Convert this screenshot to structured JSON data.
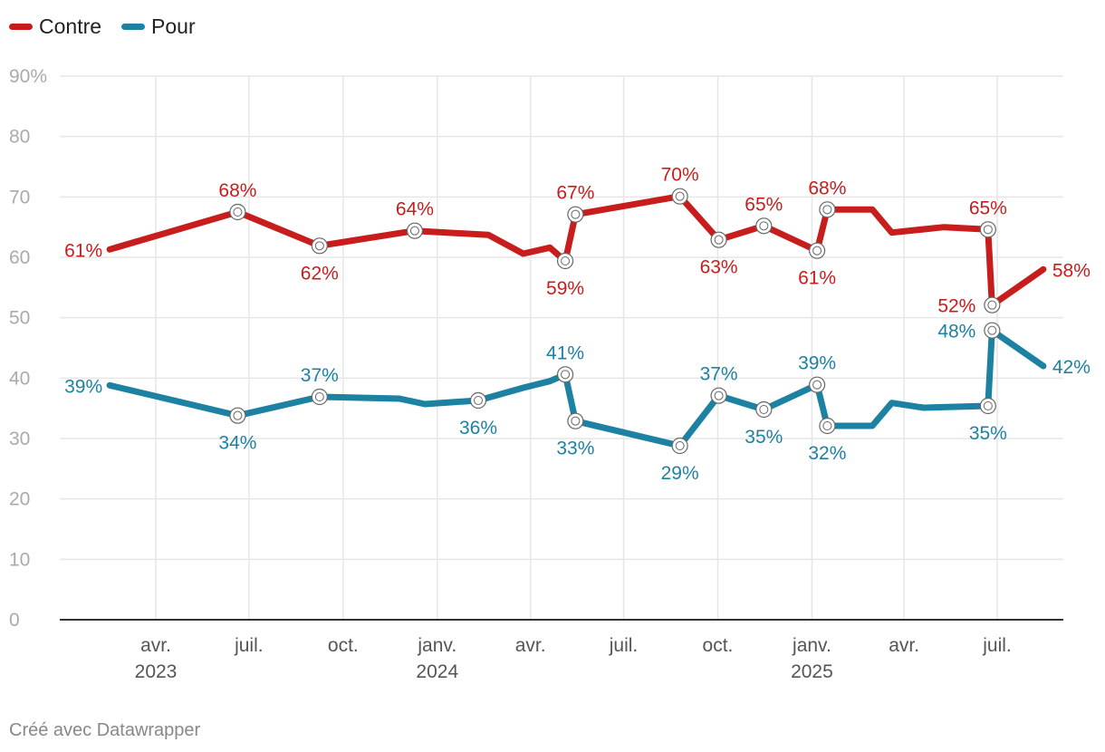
{
  "chart_data": {
    "type": "line",
    "y_axis": {
      "min": 0,
      "max": 90,
      "ticks": [
        0,
        10,
        20,
        30,
        40,
        50,
        60,
        70,
        80,
        90
      ],
      "top_tick_label": "90%"
    },
    "x_axis": {
      "ticks": [
        {
          "date": "2023-04-01",
          "month": "avr.",
          "year": "2023"
        },
        {
          "date": "2023-07-01",
          "month": "juil.",
          "year": ""
        },
        {
          "date": "2023-10-01",
          "month": "oct.",
          "year": ""
        },
        {
          "date": "2024-01-01",
          "month": "janv.",
          "year": "2024"
        },
        {
          "date": "2024-04-01",
          "month": "avr.",
          "year": ""
        },
        {
          "date": "2024-07-01",
          "month": "juil.",
          "year": ""
        },
        {
          "date": "2024-10-01",
          "month": "oct.",
          "year": ""
        },
        {
          "date": "2025-01-01",
          "month": "janv.",
          "year": "2025"
        },
        {
          "date": "2025-04-01",
          "month": "avr.",
          "year": ""
        },
        {
          "date": "2025-07-01",
          "month": "juil.",
          "year": ""
        }
      ]
    },
    "series": [
      {
        "name": "Contre",
        "color": "#c71e1d",
        "points": [
          {
            "date": "2023-02-15",
            "value": 61.3,
            "label": "61%",
            "label_pos": "left"
          },
          {
            "date": "2023-06-20",
            "value": 67.5,
            "label": "68%",
            "label_pos": "above",
            "marker": true
          },
          {
            "date": "2023-09-08",
            "value": 61.9,
            "label": "62%",
            "label_pos": "below",
            "marker": true
          },
          {
            "date": "2023-12-10",
            "value": 64.4,
            "label": "64%",
            "label_pos": "above",
            "marker": true
          },
          {
            "date": "2024-02-20",
            "value": 63.7
          },
          {
            "date": "2024-03-25",
            "value": 60.6
          },
          {
            "date": "2024-04-20",
            "value": 61.6
          },
          {
            "date": "2024-05-05",
            "value": 59.4,
            "label": "59%",
            "label_pos": "below",
            "marker": true
          },
          {
            "date": "2024-05-15",
            "value": 67.1,
            "label": "67%",
            "label_pos": "above",
            "marker": true
          },
          {
            "date": "2024-08-25",
            "value": 70.1,
            "label": "70%",
            "label_pos": "above",
            "marker": true
          },
          {
            "date": "2024-10-02",
            "value": 62.9,
            "label": "63%",
            "label_pos": "below",
            "marker": true
          },
          {
            "date": "2024-11-15",
            "value": 65.2,
            "label": "65%",
            "label_pos": "above",
            "marker": true
          },
          {
            "date": "2025-01-06",
            "value": 61.1,
            "label": "61%",
            "label_pos": "below",
            "marker": true
          },
          {
            "date": "2025-01-16",
            "value": 67.9,
            "label": "68%",
            "label_pos": "above",
            "marker": true
          },
          {
            "date": "2025-03-01",
            "value": 67.9
          },
          {
            "date": "2025-03-20",
            "value": 64.1
          },
          {
            "date": "2025-05-10",
            "value": 65.0
          },
          {
            "date": "2025-06-22",
            "value": 64.6,
            "label": "65%",
            "label_pos": "above",
            "marker": true
          },
          {
            "date": "2025-06-26",
            "value": 52.1,
            "label": "52%",
            "label_pos": "above-left",
            "marker": true
          },
          {
            "date": "2025-08-15",
            "value": 58.0,
            "label": "58%",
            "label_pos": "right"
          }
        ]
      },
      {
        "name": "Pour",
        "color": "#1d81a2",
        "points": [
          {
            "date": "2023-02-15",
            "value": 38.8,
            "label": "39%",
            "label_pos": "left"
          },
          {
            "date": "2023-06-20",
            "value": 33.8,
            "label": "34%",
            "label_pos": "below",
            "marker": true
          },
          {
            "date": "2023-09-08",
            "value": 36.9,
            "label": "37%",
            "label_pos": "above",
            "marker": true
          },
          {
            "date": "2023-11-25",
            "value": 36.6
          },
          {
            "date": "2023-12-20",
            "value": 35.7
          },
          {
            "date": "2024-02-10",
            "value": 36.3,
            "label": "36%",
            "label_pos": "below",
            "marker": true
          },
          {
            "date": "2024-03-25",
            "value": 38.4
          },
          {
            "date": "2024-04-20",
            "value": 39.5
          },
          {
            "date": "2024-05-05",
            "value": 40.6,
            "label": "41%",
            "label_pos": "above",
            "marker": true
          },
          {
            "date": "2024-05-15",
            "value": 32.9,
            "label": "33%",
            "label_pos": "below",
            "marker": true
          },
          {
            "date": "2024-08-25",
            "value": 28.8,
            "label": "29%",
            "label_pos": "below",
            "marker": true
          },
          {
            "date": "2024-10-02",
            "value": 37.1,
            "label": "37%",
            "label_pos": "above",
            "marker": true
          },
          {
            "date": "2024-11-15",
            "value": 34.8,
            "label": "35%",
            "label_pos": "below",
            "marker": true
          },
          {
            "date": "2025-01-06",
            "value": 38.9,
            "label": "39%",
            "label_pos": "above",
            "marker": true
          },
          {
            "date": "2025-01-16",
            "value": 32.1,
            "label": "32%",
            "label_pos": "below",
            "marker": true
          },
          {
            "date": "2025-03-01",
            "value": 32.1
          },
          {
            "date": "2025-03-20",
            "value": 35.9
          },
          {
            "date": "2025-04-20",
            "value": 35.1
          },
          {
            "date": "2025-06-22",
            "value": 35.4,
            "label": "35%",
            "label_pos": "below",
            "marker": true
          },
          {
            "date": "2025-06-26",
            "value": 47.9,
            "label": "48%",
            "label_pos": "above-left",
            "marker": true
          },
          {
            "date": "2025-08-15",
            "value": 42.0,
            "label": "42%",
            "label_pos": "right"
          }
        ]
      }
    ]
  },
  "legend": [
    {
      "label": "Contre",
      "color": "#c71e1d"
    },
    {
      "label": "Pour",
      "color": "#1d81a2"
    }
  ],
  "footer": {
    "credit": "Créé avec Datawrapper"
  }
}
